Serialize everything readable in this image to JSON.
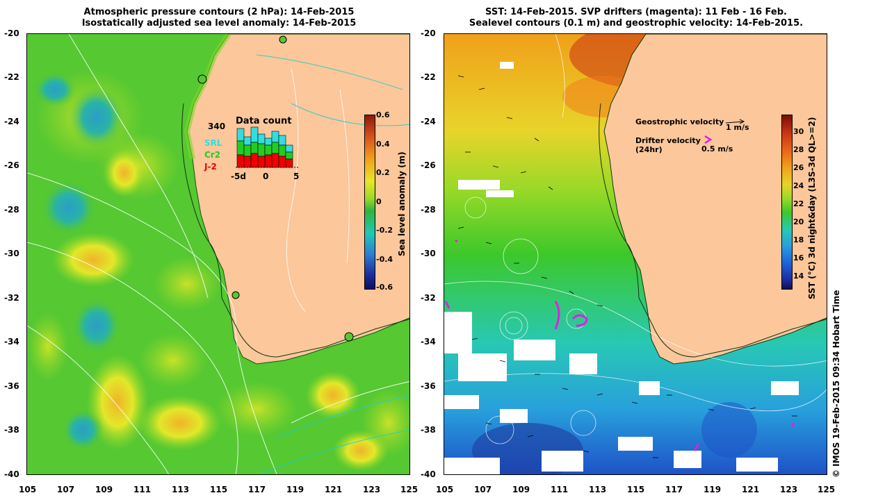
{
  "left_panel": {
    "title_line1": "Atmospheric pressure contours (2 hPa): 14-Feb-2015",
    "title_line2": "Isostatically adjusted sea level anomaly: 14-Feb-2015",
    "data_count": {
      "title": "Data count",
      "max_label": "340",
      "series": [
        {
          "name": "SRL",
          "color": "#33dddd"
        },
        {
          "name": "Cr2",
          "color": "#22cc22"
        },
        {
          "name": "J-2",
          "color": "#ee0000"
        }
      ],
      "x_ticks": [
        "-5d",
        "0",
        "5"
      ]
    },
    "colorbar": {
      "title": "Sea level anomaly (m)",
      "ticks": [
        "0.6",
        "0.4",
        "0.2",
        "0",
        "-0.2",
        "-0.4",
        "-0.6"
      ]
    }
  },
  "right_panel": {
    "title_line1": "SST: 14-Feb-2015. SVP drifters (magenta): 11 Feb - 16 Feb.",
    "title_line2": "Sealevel contours (0.1 m) and geostrophic velocity: 14-Feb-2015.",
    "legend": {
      "geostrophic_label": "Geostrophic velocity",
      "geostrophic_scale": "1 m/s",
      "drifter_label": "Drifter velocity",
      "drifter_sub": "(24hr)",
      "drifter_scale": "0.5 m/s"
    },
    "colorbar": {
      "title": "SST (°C) 3d night&day (L3S-3d QL>=2)",
      "ticks": [
        "30",
        "28",
        "26",
        "24",
        "22",
        "20",
        "18",
        "16",
        "14"
      ]
    }
  },
  "axes": {
    "y_ticks": [
      "-20",
      "-22",
      "-24",
      "-26",
      "-28",
      "-30",
      "-32",
      "-34",
      "-36",
      "-38",
      "-40"
    ],
    "x_ticks": [
      "105",
      "107",
      "109",
      "111",
      "113",
      "115",
      "117",
      "119",
      "121",
      "123",
      "125"
    ]
  },
  "credit": "© IMOS 19-Feb-2015 09:34 Hobart Time",
  "colors": {
    "land": "#fbc79b",
    "sla_green": "#55c832",
    "sla_lightgreen": "#9ad928",
    "sla_yellow": "#e2e82a",
    "sla_cyan": "#2ab3a5",
    "sst_red": "#c83214",
    "sst_orange": "#f0a01a",
    "sst_yellow": "#e8d42a",
    "sst_green": "#3cc82a",
    "sst_cyan": "#28c8b4",
    "sst_blue": "#1e64dc",
    "drifter": "#dd22dd"
  }
}
